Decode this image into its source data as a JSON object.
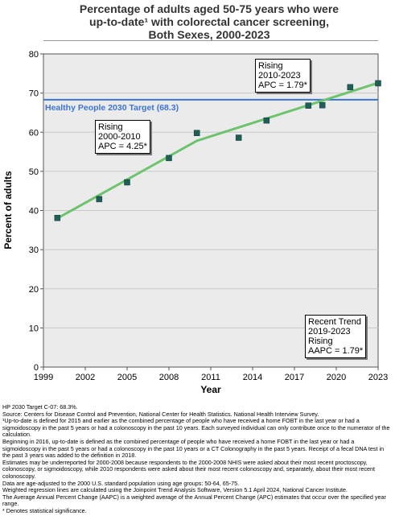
{
  "title_lines": [
    "Percentage of adults aged 50-75 years who were",
    "up-to-date¹ with colorectal cancer screening,",
    "Both Sexes,  2000-2023"
  ],
  "chart_data": {
    "type": "scatter",
    "xlabel": "Year",
    "ylabel": "Percent of adults",
    "xlim": [
      1999,
      2023
    ],
    "ylim": [
      0,
      80
    ],
    "xticks": [
      1999,
      2002,
      2005,
      2008,
      2011,
      2014,
      2017,
      2020,
      2023
    ],
    "yticks": [
      0,
      10,
      20,
      30,
      40,
      50,
      60,
      70,
      80
    ],
    "grid": true,
    "observed": {
      "x": [
        2000,
        2003,
        2005,
        2008,
        2010,
        2013,
        2015,
        2018,
        2019,
        2021,
        2023
      ],
      "y": [
        38.1,
        42.9,
        47.2,
        53.4,
        59.8,
        58.6,
        63.0,
        66.8,
        66.9,
        71.5,
        72.5
      ],
      "color": "#1f5f57"
    },
    "trend_segments": [
      {
        "x": [
          2000,
          2010
        ],
        "y": [
          38.0,
          57.8
        ]
      },
      {
        "x": [
          2010,
          2023
        ],
        "y": [
          57.8,
          72.6
        ]
      }
    ],
    "trend_color": "#6cc46c",
    "target": {
      "label": "Healthy People 2030 Target (68.3)",
      "value": 68.3,
      "color": "#3a74d8"
    },
    "annotations": [
      {
        "id": "seg1",
        "lines": [
          "Rising",
          "2000-2010",
          "APC =  4.25*"
        ]
      },
      {
        "id": "seg2",
        "lines": [
          "Rising",
          "2010-2023",
          "APC =  1.79*"
        ]
      },
      {
        "id": "recent",
        "lines": [
          "Recent Trend",
          "2019-2023",
          "Rising",
          "AAPC =  1.79*"
        ]
      }
    ]
  },
  "notes": [
    "HP 2030 Target C-07: 68.3%.",
    "Source: Centers for Disease Control and Prevention, National Center for Health Statistics. National Health Interview Survey.",
    "¹Up-to-date is defined for 2015 and earlier as the combined percentage of people who have received a home FOBT in the last year or had a sigmoidoscopy in the past 5 years or had a colonoscopy in the past 10 years. Each surveyed individual can only contribute once to the numerator of the calculation.",
    "Beginning in 2016, up-to-date is defined as the combined percentage of people who have received a home FOBT in the last year or had a sigmoidoscopy in the past 5 years or had a colonoscopy in the past 10 years or a CT Colonography in the past 5 years. Receipt of a fecal DNA test in the past 3 years was added to the definition in 2018.",
    "Estimates may be underreported for 2000-2008 because respondents to the 2000-2008 NHIS were asked about their most recent proctoscopy, colonoscopy, or sigmoidoscopy, while 2010 respondents were asked about their most recent colonoscopy and, separately, about their most recent colonoscopy.",
    "Data are age-adjusted to the 2000 U.S. standard population using age groups: 50-64, 65-75.",
    "Weighted regression lines are calculated using the Joinpoint Trend Analysis Software, Version 5.1 April 2024, National Cancer Institute.",
    "The Average Annual Percent Change (AAPC) is a weighted average of the Annual Percent Change (APC) estimates that occur over the specified year range.",
    "* Denotes statistical significance."
  ]
}
